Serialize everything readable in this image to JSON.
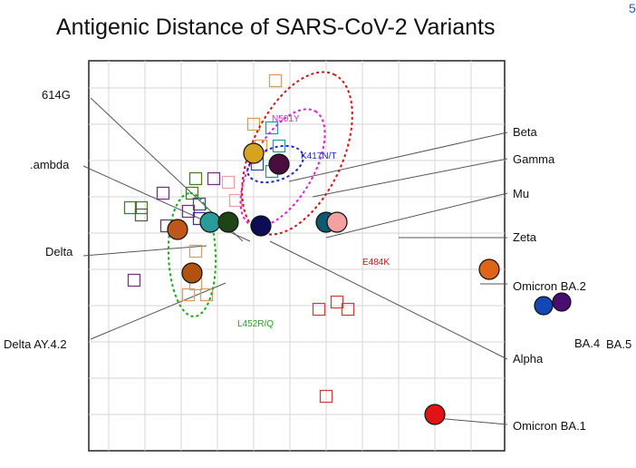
{
  "chart_data": {
    "type": "scatter",
    "title": "Antigenic Distance of SARS-CoV-2 Variants",
    "xlabel": "",
    "ylabel": "",
    "grid": true,
    "grid_cols": 11,
    "grid_rows": 11,
    "variants": [
      {
        "name": "614G",
        "x": 2.8,
        "y": 6.3,
        "color": "#2a9a9a"
      },
      {
        "name": "Lambda",
        "x": 3.3,
        "y": 6.3,
        "color": "#1f4416"
      },
      {
        "name": "Delta",
        "x": 1.9,
        "y": 6.1,
        "color": "#c0561c"
      },
      {
        "name": "Delta AY.4.2",
        "x": 2.3,
        "y": 4.9,
        "color": "#b05212"
      },
      {
        "name": "Beta",
        "x": 4.0,
        "y": 8.2,
        "color": "#d6a31e"
      },
      {
        "name": "Gamma",
        "x": 4.7,
        "y": 7.9,
        "color": "#4a0e3e"
      },
      {
        "name": "Mu",
        "x": 6.0,
        "y": 6.3,
        "color": "#0d5a70"
      },
      {
        "name": "Zeta",
        "x": 6.3,
        "y": 6.3,
        "color": "#f3a0a0"
      },
      {
        "name": "Alpha",
        "x": 4.2,
        "y": 6.2,
        "color": "#0c0d54"
      },
      {
        "name": "Omicron BA.2",
        "x": 10.5,
        "y": 5.0,
        "color": "#e06418"
      },
      {
        "name": "Omicron BA.1",
        "x": 9.0,
        "y": 1.0,
        "color": "#e01414"
      },
      {
        "name": "BA.4",
        "x": 12.0,
        "y": 4.0,
        "color": "#1446b4"
      },
      {
        "name": "BA.5",
        "x": 12.5,
        "y": 4.1,
        "color": "#4a0e6e"
      }
    ],
    "sera": [
      {
        "x": 4.6,
        "y": 10.2,
        "color": "#d2a070"
      },
      {
        "x": 4.0,
        "y": 9.0,
        "color": "#d6a040"
      },
      {
        "x": 4.5,
        "y": 8.9,
        "color": "#2a9a9a"
      },
      {
        "x": 4.2,
        "y": 8.4,
        "color": "#d6a040"
      },
      {
        "x": 4.7,
        "y": 8.4,
        "color": "#2a9a9a"
      },
      {
        "x": 4.1,
        "y": 7.9,
        "color": "#3050a0"
      },
      {
        "x": 4.5,
        "y": 7.7,
        "color": "#2a9a9a"
      },
      {
        "x": 2.9,
        "y": 7.5,
        "color": "#6a3a7a"
      },
      {
        "x": 3.3,
        "y": 7.4,
        "color": "#f0a0a0"
      },
      {
        "x": 2.4,
        "y": 7.5,
        "color": "#4a7a2a"
      },
      {
        "x": 1.5,
        "y": 7.1,
        "color": "#6a3a7a"
      },
      {
        "x": 2.3,
        "y": 7.1,
        "color": "#4a7a2a"
      },
      {
        "x": 2.5,
        "y": 6.8,
        "color": "#4a4a9a"
      },
      {
        "x": 3.5,
        "y": 6.9,
        "color": "#f0a0a0"
      },
      {
        "x": 0.6,
        "y": 6.7,
        "color": "#4a7a2a"
      },
      {
        "x": 0.9,
        "y": 6.7,
        "color": "#4a7a2a"
      },
      {
        "x": 0.9,
        "y": 6.5,
        "color": "#5a5a5a"
      },
      {
        "x": 2.2,
        "y": 6.6,
        "color": "#6a3a7a"
      },
      {
        "x": 2.5,
        "y": 6.4,
        "color": "#3a3a8a"
      },
      {
        "x": 1.6,
        "y": 6.2,
        "color": "#6a3a7a"
      },
      {
        "x": 2.4,
        "y": 5.5,
        "color": "#d2a070"
      },
      {
        "x": 2.2,
        "y": 4.3,
        "color": "#d2a070"
      },
      {
        "x": 2.4,
        "y": 4.6,
        "color": "#d2a070"
      },
      {
        "x": 2.7,
        "y": 4.3,
        "color": "#d2a070"
      },
      {
        "x": 0.7,
        "y": 4.7,
        "color": "#6a3a7a"
      },
      {
        "x": 6.3,
        "y": 4.1,
        "color": "#d04040"
      },
      {
        "x": 6.6,
        "y": 3.9,
        "color": "#d04040"
      },
      {
        "x": 5.8,
        "y": 3.9,
        "color": "#d04040"
      },
      {
        "x": 6.0,
        "y": 1.5,
        "color": "#d04040"
      }
    ],
    "ellipses": [
      {
        "label": "E484K",
        "color": "#d41414",
        "cx": 5.2,
        "cy": 8.2,
        "rx": 2.4,
        "ry": 1.25,
        "angle": 65
      },
      {
        "label": "N501Y",
        "color": "#e020d8",
        "cx": 4.8,
        "cy": 7.8,
        "rx": 1.8,
        "ry": 0.85,
        "angle": 60
      },
      {
        "label": "K417N/T",
        "color": "#1a28c8",
        "cx": 4.6,
        "cy": 7.9,
        "rx": 0.8,
        "ry": 0.45,
        "angle": 20
      },
      {
        "label": "L452R/Q",
        "color": "#1aa81a",
        "cx": 2.3,
        "cy": 5.4,
        "rx": 1.7,
        "ry": 0.65,
        "angle": 92
      }
    ],
    "xlim": [
      0,
      11
    ],
    "ylim": [
      0,
      11
    ]
  },
  "labels": {
    "g614": "614G",
    "lambda": ".ambda",
    "delta": "Delta",
    "delta_ay": "Delta AY.4.2",
    "beta": "Beta",
    "gamma": "Gamma",
    "mu": "Mu",
    "zeta": "Zeta",
    "omicron_ba2": "Omicron BA.2",
    "alpha": "Alpha",
    "omicron_ba1": "Omicron BA.1",
    "ba4": "BA.4",
    "ba5": "BA.5",
    "corner_mark": "5"
  }
}
